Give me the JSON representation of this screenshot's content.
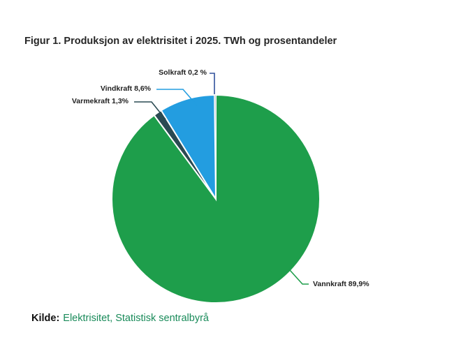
{
  "title": "Figur 1. Produksjon av elektrisitet i 2025. TWh og prosentandeler",
  "source": {
    "prefix": "Kilde:",
    "text": "Elektrisitet, Statistisk sentralbyrå",
    "link_color": "#188a59"
  },
  "chart_data": {
    "type": "pie",
    "title": "Figur 1. Produksjon av elektrisitet i 2025. TWh og prosentandeler",
    "units": "TWh og prosentandeler",
    "start_angle_deg": 0,
    "direction": "clockwise",
    "stroke": "#ffffff",
    "legend": false,
    "labels_position": "outside-with-leader-lines",
    "slices": [
      {
        "name": "Vannkraft",
        "label": "Vannkraft 89,9%",
        "value": 89.9,
        "color": "#1e9e4b",
        "leader_color": "#1e9e4b"
      },
      {
        "name": "Varmekraft",
        "label": "Varmekraft 1,3%",
        "value": 1.3,
        "color": "#2a4a52",
        "leader_color": "#2a4a52"
      },
      {
        "name": "Vindkraft",
        "label": "Vindkraft 8,6%",
        "value": 8.6,
        "color": "#239de0",
        "leader_color": "#239de0"
      },
      {
        "name": "Solkraft",
        "label": "Solkraft 0,2 %",
        "value": 0.2,
        "color": "#9aa3ab",
        "leader_color": "#31519c"
      }
    ]
  }
}
